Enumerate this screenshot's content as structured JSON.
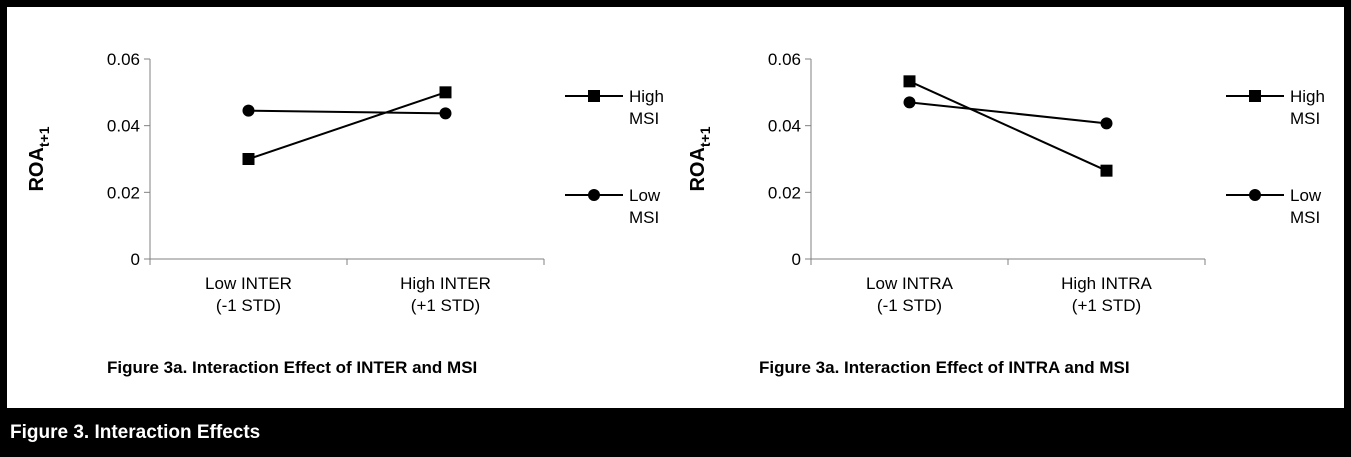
{
  "chart_data": [
    {
      "type": "line",
      "categories": [
        "Low INTER\n(-1 STD)",
        "High INTER\n(+1 STD)"
      ],
      "series": [
        {
          "name": "High\nMSI",
          "marker": "square",
          "values": [
            0.03,
            0.05
          ]
        },
        {
          "name": "Low\nMSI",
          "marker": "circle",
          "values": [
            0.0445,
            0.0437
          ]
        }
      ],
      "ylabel_main": "ROA",
      "ylabel_sub": "t+1",
      "ylim": [
        0,
        0.06
      ],
      "yticks": [
        "0",
        "0.02",
        "0.04",
        "0.06"
      ],
      "caption": "Figure 3a. Interaction Effect of INTER and MSI",
      "legend_position": "right",
      "grid": false
    },
    {
      "type": "line",
      "categories": [
        "Low INTRA\n(-1 STD)",
        "High INTRA\n(+1 STD)"
      ],
      "series": [
        {
          "name": "High\nMSI",
          "marker": "square",
          "values": [
            0.0533,
            0.0265
          ]
        },
        {
          "name": "Low\nMSI",
          "marker": "circle",
          "values": [
            0.047,
            0.0407
          ]
        }
      ],
      "ylabel_main": "ROA",
      "ylabel_sub": "t+1",
      "ylim": [
        0,
        0.06
      ],
      "yticks": [
        "0",
        "0.02",
        "0.04",
        "0.06"
      ],
      "caption": "Figure 3a. Interaction Effect of INTRA and MSI",
      "legend_position": "right",
      "grid": false
    }
  ],
  "footer": {
    "title": "Figure 3.  Interaction Effects"
  },
  "colors": {
    "frame": "#000000",
    "footer_bg": "#000000",
    "footer_text": "#ffffff",
    "series": "#000000"
  }
}
